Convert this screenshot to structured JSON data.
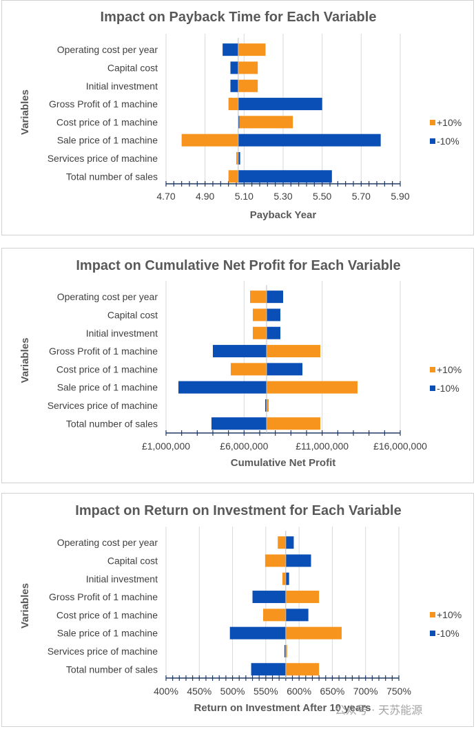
{
  "chart_data": [
    {
      "type": "bar",
      "orientation": "horizontal",
      "title": "Impact on Payback Time for Each Variable",
      "xlabel": "Payback Year",
      "ylabel": "Variables",
      "categories": [
        "Operating cost per year",
        "Capital cost",
        "Initial investment",
        "Gross Profit of 1 machine",
        "Cost price of 1 machine",
        "Sale price of 1 machine",
        "Services price of machine",
        "Total number of sales"
      ],
      "baseline": 5.07,
      "xlim": [
        4.7,
        5.9
      ],
      "xticks": [
        "4.70",
        "4.90",
        "5.10",
        "5.30",
        "5.50",
        "5.70",
        "5.90"
      ],
      "grid": true,
      "legend_position": "right",
      "series": [
        {
          "name": "+10%",
          "color": "#f7941d",
          "values": [
            5.21,
            5.17,
            5.17,
            5.02,
            5.35,
            4.78,
            5.06,
            5.02
          ]
        },
        {
          "name": "-10%",
          "color": "#0a4fb5",
          "values": [
            4.99,
            5.03,
            5.03,
            5.5,
            5.07,
            5.8,
            5.08,
            5.55
          ]
        }
      ]
    },
    {
      "type": "bar",
      "orientation": "horizontal",
      "title": "Impact on Cumulative Net Profit for Each Variable",
      "xlabel": "Cumulative Net Profit",
      "ylabel": "Variables",
      "categories": [
        "Operating cost per year",
        "Capital cost",
        "Initial investment",
        "Gross Profit of 1 machine",
        "Cost price of 1 machine",
        "Sale price of 1 machine",
        "Services price of machine",
        "Total number of sales"
      ],
      "baseline": 8300000,
      "xlim": [
        1000000,
        18000000
      ],
      "xticks": [
        "£1,000,000",
        "£6,000,000",
        "£11,000,000",
        "£16,000,000"
      ],
      "grid": true,
      "legend_position": "right",
      "series": [
        {
          "name": "+10%",
          "color": "#f7941d",
          "values": [
            7100000,
            7300000,
            7300000,
            12200000,
            5700000,
            14900000,
            8450000,
            12200000
          ]
        },
        {
          "name": "-10%",
          "color": "#0a4fb5",
          "values": [
            9500000,
            9300000,
            9300000,
            4400000,
            10900000,
            1900000,
            8200000,
            4300000
          ]
        }
      ]
    },
    {
      "type": "bar",
      "orientation": "horizontal",
      "title": "Impact on Return on Investment for Each Variable",
      "xlabel": "Return on Investment After 10 years",
      "ylabel": "Variables",
      "categories": [
        "Operating cost per year",
        "Capital cost",
        "Initial investment",
        "Gross Profit of 1 machine",
        "Cost price of 1 machine",
        "Sale price of 1 machine",
        "Services price of machine",
        "Total number of sales"
      ],
      "baseline": 580,
      "xlim": [
        400,
        750
      ],
      "xticks": [
        "400%",
        "450%",
        "500%",
        "550%",
        "600%",
        "650%",
        "700%",
        "750%"
      ],
      "grid": true,
      "legend_position": "right",
      "series": [
        {
          "name": "+10%",
          "color": "#f7941d",
          "values": [
            568,
            549,
            575,
            630,
            546,
            664,
            582,
            630
          ]
        },
        {
          "name": "-10%",
          "color": "#0a4fb5",
          "values": [
            592,
            618,
            585,
            530,
            614,
            496,
            578,
            528
          ]
        }
      ]
    }
  ],
  "watermark": "公众号 · 天苏能源"
}
